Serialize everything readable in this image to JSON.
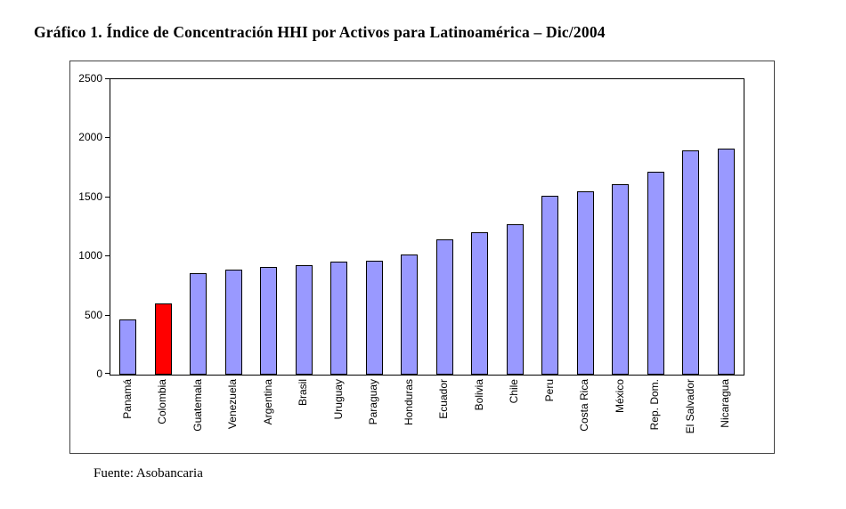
{
  "page": {
    "title": "Gráfico 1. Índice de Concentración HHI por Activos para Latinoamérica – Dic/2004",
    "source": "Fuente: Asobancaria"
  },
  "chart_data": {
    "type": "bar",
    "title": "Gráfico 1. Índice de Concentración HHI por Activos para Latinoamérica – Dic/2004",
    "categories": [
      "Panamá",
      "Colombia",
      "Guatemala",
      "Venezuela",
      "Argentina",
      "Brasil",
      "Uruguay",
      "Paraguay",
      "Honduras",
      "Ecuador",
      "Bolivia",
      "Chile",
      "Peru",
      "Costa Rica",
      "México",
      "Rep. Dom.",
      "El Salvador",
      "Nicaragua"
    ],
    "values": [
      470,
      600,
      860,
      885,
      910,
      930,
      960,
      965,
      1020,
      1145,
      1205,
      1275,
      1510,
      1555,
      1610,
      1720,
      1900,
      1910
    ],
    "xlabel": "",
    "ylabel": "",
    "ylim": [
      0,
      2500
    ],
    "yticks": [
      0,
      500,
      1000,
      1500,
      2000,
      2500
    ],
    "grid": false,
    "legend": "none",
    "bar_color": "#9999ff",
    "bar_border": "#000000",
    "highlight": {
      "category": "Colombia",
      "color": "#ff0000"
    }
  }
}
